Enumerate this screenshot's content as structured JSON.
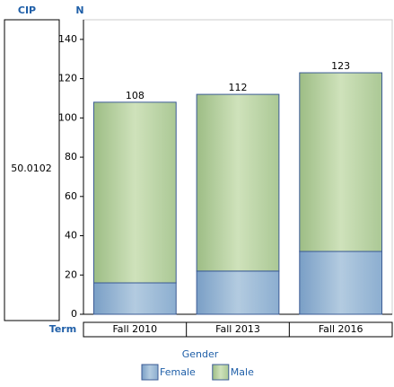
{
  "chart_data": {
    "type": "stacked_bar",
    "panel_header": "CIP",
    "panel_label": "50.0102",
    "ylabel": "N",
    "xlabel": "Term",
    "legend_title": "Gender",
    "categories": [
      "Fall 2010",
      "Fall 2013",
      "Fall 2016"
    ],
    "series": [
      {
        "name": "Female",
        "color": "#93b3d3",
        "values": [
          16,
          22,
          32
        ]
      },
      {
        "name": "Male",
        "color": "#b5cf9f",
        "values": [
          92,
          90,
          91
        ]
      }
    ],
    "total_labels": [
      108,
      112,
      123
    ],
    "ylim": [
      0,
      150
    ],
    "yticks": [
      0,
      20,
      40,
      60,
      80,
      100,
      120,
      140
    ],
    "legend": "bottom"
  }
}
